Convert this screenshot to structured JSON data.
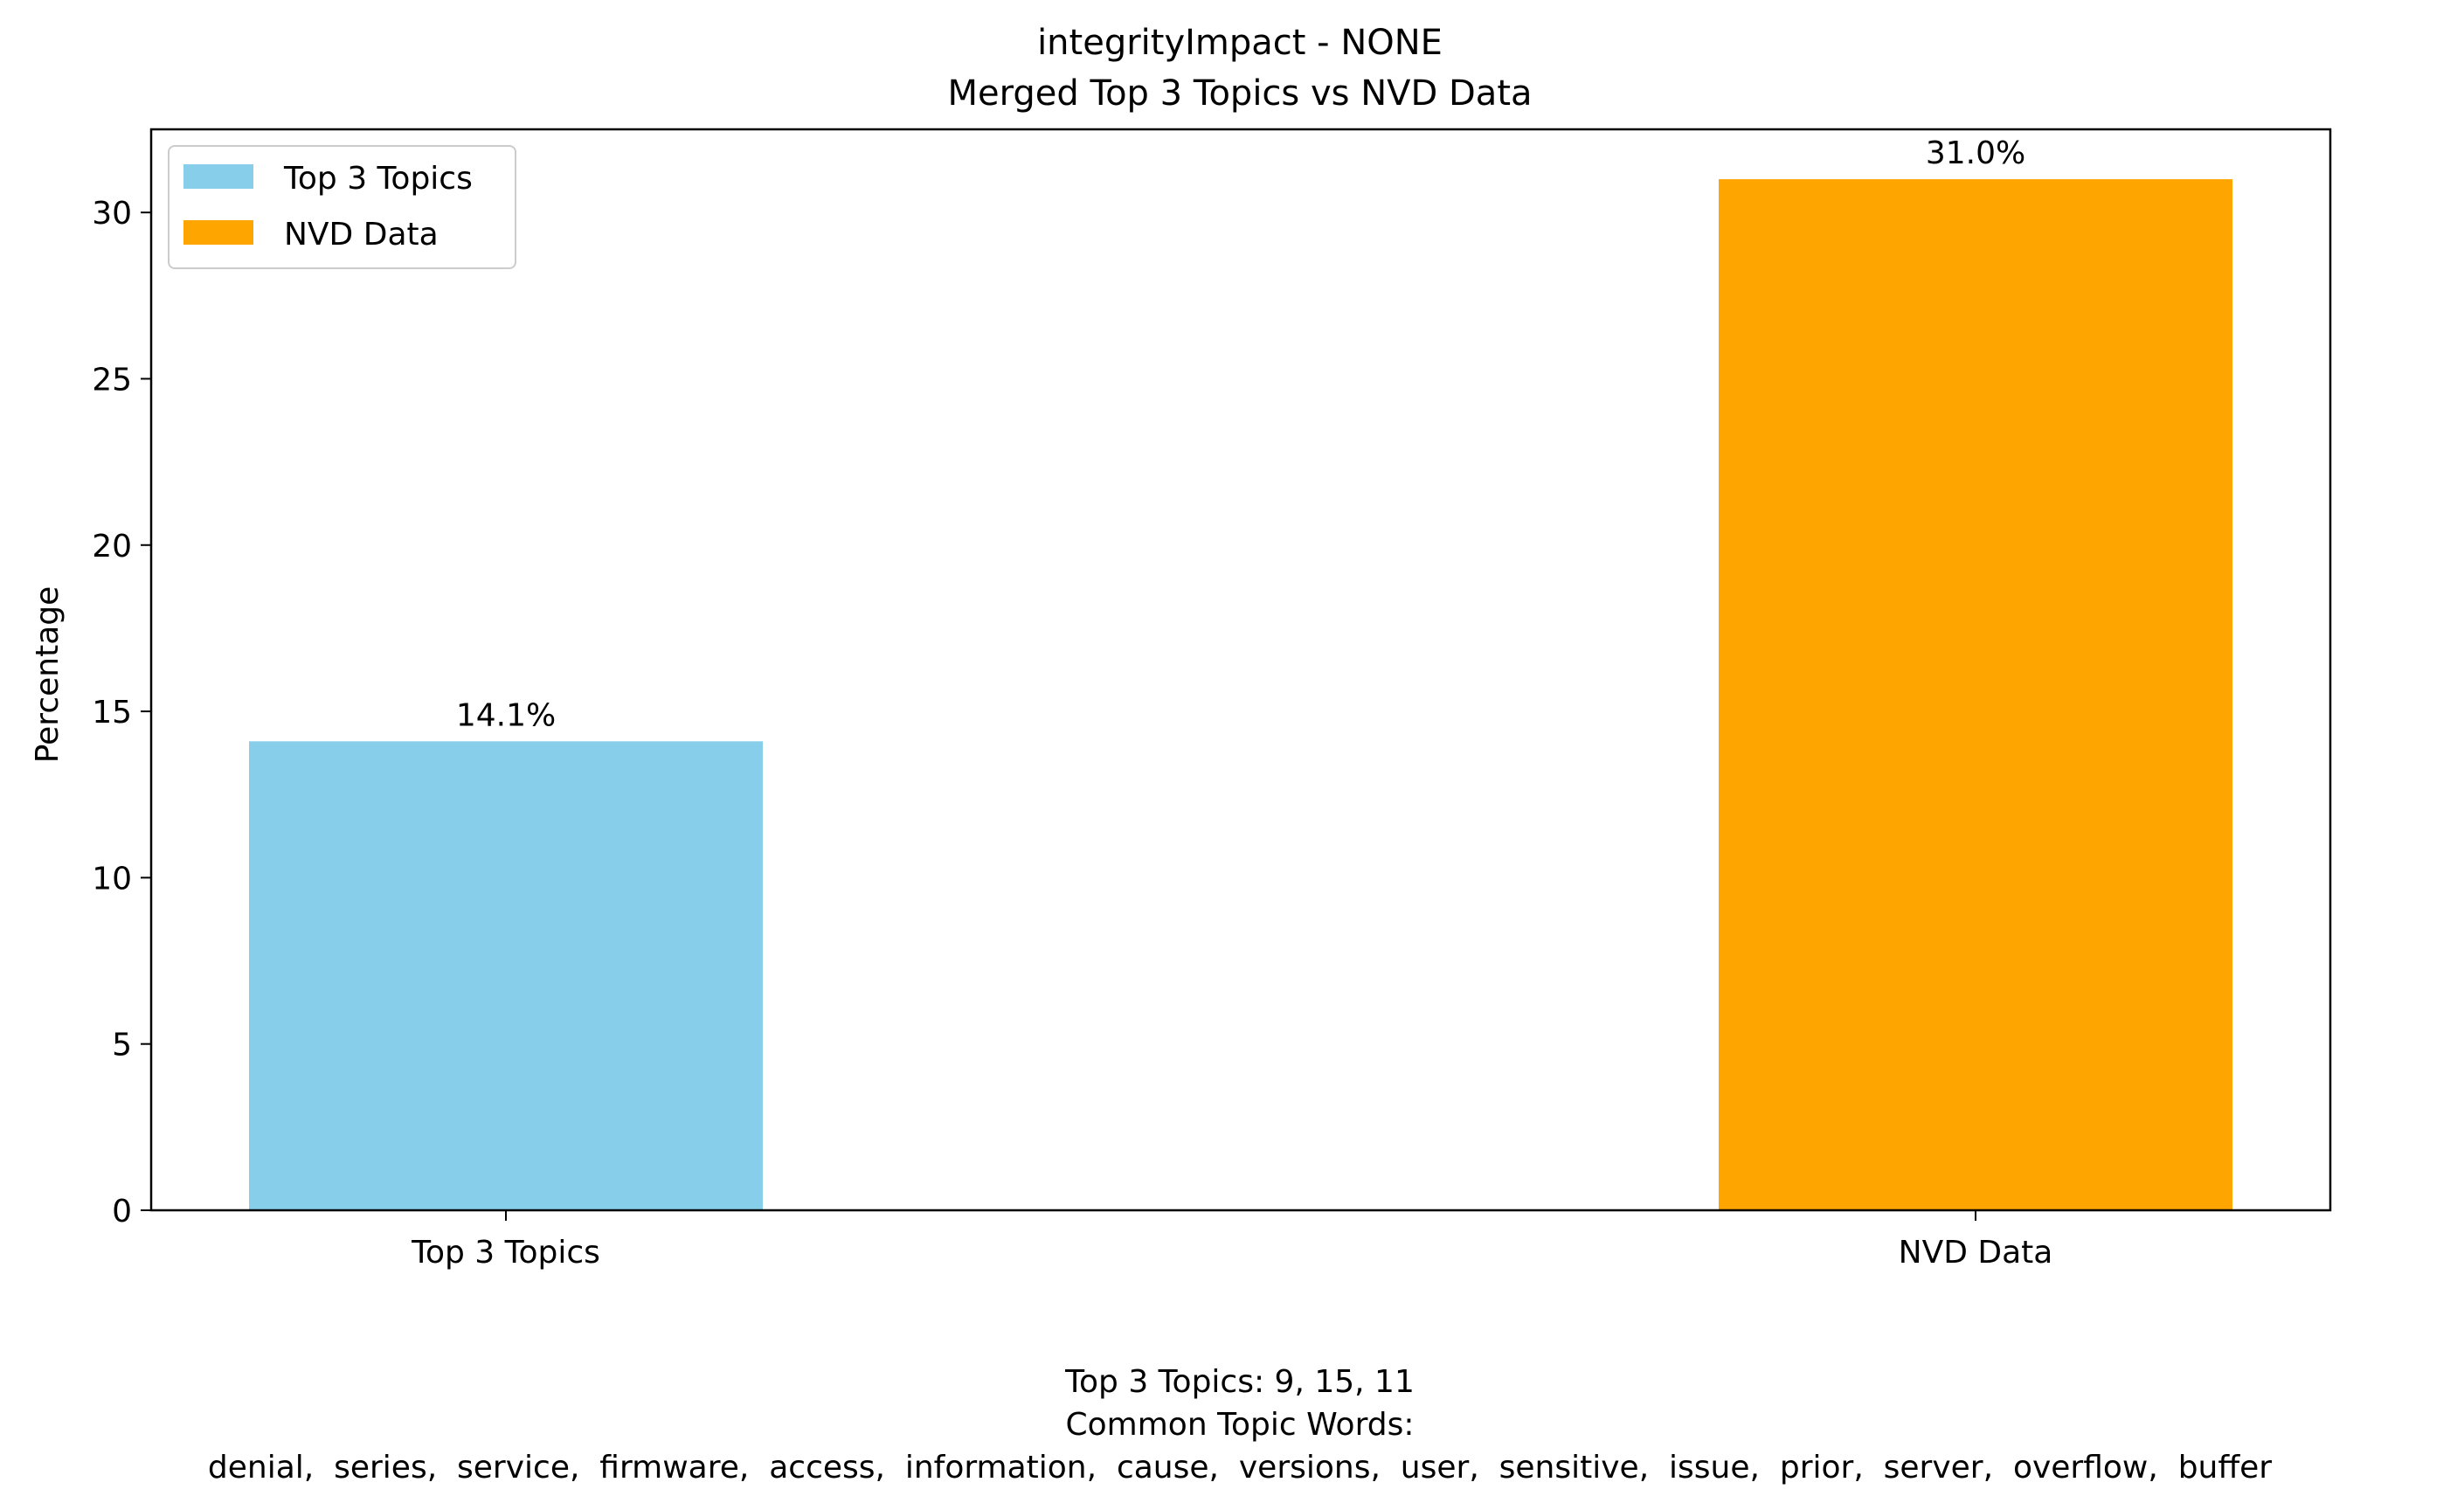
{
  "chart_data": {
    "type": "bar",
    "title_line1": "integrityImpact - NONE",
    "title_line2": "Merged Top 3 Topics vs NVD Data",
    "xlabel": "",
    "ylabel": "Percentage",
    "categories": [
      "Top 3 Topics",
      "NVD Data"
    ],
    "values": [
      14.1,
      31.0
    ],
    "value_labels": [
      "14.1%",
      "31.0%"
    ],
    "colors": [
      "#87CEEB",
      "#FFA500"
    ],
    "ylim": [
      0,
      32.5
    ],
    "yticks": [
      "0",
      "5",
      "10",
      "15",
      "20",
      "25",
      "30"
    ],
    "legend": {
      "position": "top-left",
      "entries": [
        "Top 3 Topics",
        "NVD Data"
      ]
    },
    "grid": false
  },
  "footer": {
    "line1": "Top 3 Topics: 9, 15, 11",
    "line2": "Common Topic Words:",
    "line3": "denial,  series,  service,  firmware,  access,  information,  cause,  versions,  user,  sensitive,  issue,  prior,  server,  overflow,  buffer"
  }
}
